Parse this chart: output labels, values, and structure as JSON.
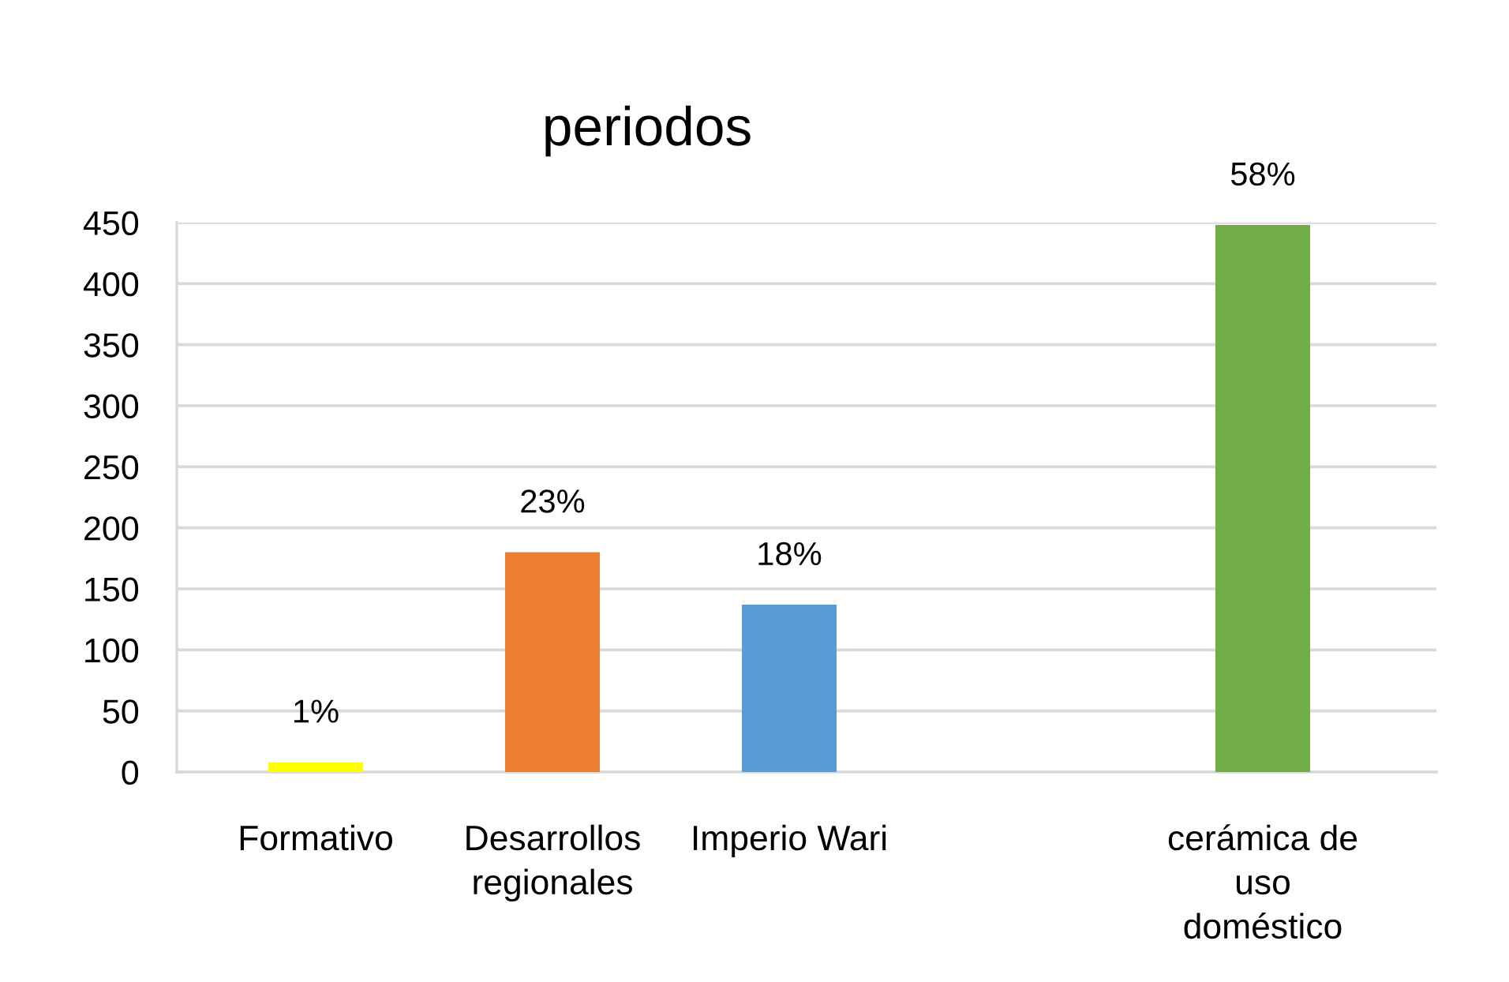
{
  "chart_data": {
    "type": "bar",
    "title": "periodos",
    "categories": [
      "Formativo",
      "Desarrollos regionales",
      "Imperio Wari",
      null,
      "cerámica de uso doméstico"
    ],
    "values": [
      8,
      180,
      137,
      null,
      448
    ],
    "colors": [
      "#ffff00",
      "#ed7d31",
      "#5b9bd5",
      null,
      "#70ad47"
    ],
    "annotations": [
      {
        "text": "1%",
        "x": "Formativo",
        "y": 8
      },
      {
        "text": "23%",
        "x": "Desarrollos regionales",
        "y": 180
      },
      {
        "text": "18%",
        "x": "Imperio Wari",
        "y": 137
      },
      {
        "text": "58%",
        "x": "cerámica de uso doméstico",
        "y": 448
      }
    ],
    "ylim": [
      0,
      450
    ],
    "yticks": [
      0,
      50,
      100,
      150,
      200,
      250,
      300,
      350,
      400,
      450
    ],
    "grid": "y"
  }
}
